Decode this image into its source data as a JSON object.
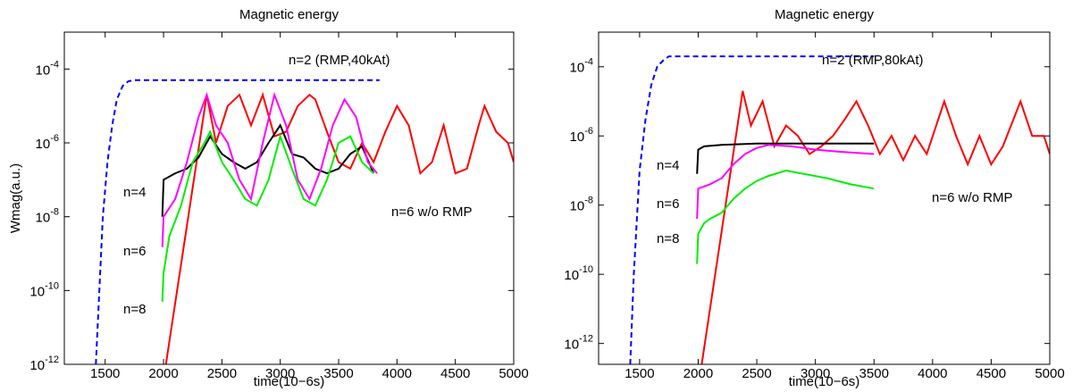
{
  "chart_data": [
    {
      "type": "line",
      "title": "Magnetic energy",
      "xlabel": "time(10−6s)",
      "ylabel": "Wmag(a.u.)",
      "log_y": true,
      "xlim": [
        1150,
        5000
      ],
      "ylim": [
        1e-12,
        0.001
      ],
      "xticks": [
        1500,
        2000,
        2500,
        3000,
        3500,
        4000,
        4500,
        5000
      ],
      "yticks": [
        {
          "value": 1e-12,
          "label": "10^-12"
        },
        {
          "value": 1e-10,
          "label": "10^-10"
        },
        {
          "value": 1e-08,
          "label": "10^-8"
        },
        {
          "value": 1e-06,
          "label": "10^-6"
        },
        {
          "value": 0.0001,
          "label": "10^-4"
        }
      ],
      "series": [
        {
          "name": "n=2 (RMP,40kAt)",
          "color": "#0000ff",
          "linestyle": "dashed",
          "x": [
            1420,
            1450,
            1480,
            1520,
            1560,
            1600,
            1650,
            1700,
            1750,
            3850
          ],
          "values": [
            1e-12,
            1e-10,
            1e-08,
            3e-07,
            3e-06,
            1.5e-05,
            3.5e-05,
            4.7e-05,
            5e-05,
            5e-05
          ]
        },
        {
          "name": "n=6 w/o RMP",
          "color": "#ff0000",
          "linestyle": "solid",
          "x": [
            2020,
            2370,
            2450,
            2550,
            2650,
            2750,
            2850,
            2950,
            3050,
            3150,
            3250,
            3300,
            3400,
            3500,
            3600,
            3700,
            3800,
            3900,
            4000,
            4100,
            4200,
            4300,
            4400,
            4500,
            4600,
            4700,
            4750,
            4850,
            4950,
            5000
          ],
          "values": [
            1e-12,
            2e-05,
            1e-06,
            1e-05,
            2e-05,
            3e-06,
            2e-05,
            1.5e-06,
            2e-06,
            1e-05,
            2e-05,
            1.5e-05,
            2e-06,
            3e-07,
            2e-07,
            1e-06,
            3e-07,
            2e-06,
            1e-05,
            3e-06,
            1.5e-07,
            3e-07,
            3e-06,
            1.5e-07,
            2e-07,
            3e-06,
            1e-05,
            2e-06,
            1e-06,
            3e-07
          ]
        },
        {
          "name": "n=4",
          "color": "#000000",
          "linestyle": "solid",
          "x": [
            1990,
            2000,
            2100,
            2200,
            2300,
            2400,
            2500,
            2600,
            2700,
            2800,
            2900,
            3000,
            3100,
            3200,
            3300,
            3400,
            3500,
            3600,
            3700,
            3800
          ],
          "values": [
            1e-08,
            1e-07,
            1.5e-07,
            2e-07,
            4e-07,
            1.5e-06,
            5e-07,
            3e-07,
            2e-07,
            3e-07,
            1e-06,
            3e-06,
            5e-07,
            4e-07,
            2e-07,
            1.5e-07,
            2e-07,
            5e-07,
            8e-07,
            1.5e-07
          ]
        },
        {
          "name": "n=6",
          "color": "#ff00ff",
          "linestyle": "solid",
          "x": [
            1990,
            2000,
            2100,
            2200,
            2300,
            2370,
            2450,
            2550,
            2650,
            2750,
            2850,
            2950,
            3050,
            3150,
            3250,
            3350,
            3450,
            3550,
            3650,
            3750,
            3830
          ],
          "values": [
            1.5e-09,
            1e-08,
            3e-08,
            3e-07,
            5e-06,
            2e-05,
            3e-06,
            1e-06,
            1e-07,
            3e-08,
            1e-06,
            2e-05,
            3e-06,
            1e-07,
            3e-08,
            2e-07,
            3e-06,
            1.5e-05,
            5e-06,
            3e-07,
            1.5e-07
          ]
        },
        {
          "name": "n=8",
          "color": "#00ee00",
          "linestyle": "solid",
          "x": [
            1990,
            2000,
            2050,
            2150,
            2250,
            2350,
            2400,
            2500,
            2600,
            2700,
            2800,
            2900,
            3000,
            3100,
            3200,
            3300,
            3400,
            3500,
            3600,
            3700,
            3800
          ],
          "values": [
            5e-11,
            3e-10,
            3e-09,
            2e-08,
            3e-07,
            1e-06,
            2e-06,
            3e-07,
            1e-07,
            3e-08,
            2e-08,
            1e-07,
            1.5e-06,
            2e-07,
            3e-08,
            2e-08,
            1e-07,
            1e-06,
            1.5e-06,
            3e-07,
            1.5e-07
          ]
        }
      ]
    },
    {
      "type": "line",
      "title": "Magnetic energy",
      "xlabel": "time(10−6s)",
      "log_y": true,
      "xlim": [
        1150,
        5000
      ],
      "ylim": [
        2.5e-13,
        0.001
      ],
      "xticks": [
        1500,
        2000,
        2500,
        3000,
        3500,
        4000,
        4500,
        5000
      ],
      "yticks": [
        {
          "value": 1e-12,
          "label": "10^-12"
        },
        {
          "value": 1e-10,
          "label": "10^-10"
        },
        {
          "value": 1e-08,
          "label": "10^-8"
        },
        {
          "value": 1e-06,
          "label": "10^-6"
        },
        {
          "value": 0.0001,
          "label": "10^-4"
        }
      ],
      "series": [
        {
          "name": "n=2 (RMP,80kAt)",
          "color": "#0000ff",
          "linestyle": "dashed",
          "x": [
            1420,
            1450,
            1500,
            1550,
            1600,
            1650,
            1700,
            1750,
            3500
          ],
          "values": [
            2.5e-13,
            1e-10,
            1e-07,
            3e-06,
            3e-05,
            0.0001,
            0.00015,
            0.0002,
            0.0002
          ]
        },
        {
          "name": "n=6 w/o RMP",
          "color": "#ff0000",
          "linestyle": "solid",
          "x": [
            2030,
            2380,
            2450,
            2550,
            2650,
            2750,
            2850,
            2950,
            3050,
            3150,
            3250,
            3350,
            3450,
            3550,
            3650,
            3750,
            3850,
            3950,
            4100,
            4200,
            4300,
            4400,
            4500,
            4600,
            4750,
            4850,
            4950,
            5000
          ],
          "values": [
            2.5e-13,
            2e-05,
            2e-06,
            1e-05,
            5e-07,
            2e-06,
            1e-06,
            3e-07,
            5e-07,
            1e-06,
            3e-06,
            1e-05,
            2e-06,
            3e-07,
            1e-06,
            2e-07,
            1e-06,
            3e-07,
            1e-05,
            1e-06,
            1.5e-07,
            1e-06,
            1.5e-07,
            5e-07,
            1e-05,
            1e-06,
            1e-06,
            3e-07
          ]
        },
        {
          "name": "n=4",
          "color": "#000000",
          "linestyle": "solid",
          "x": [
            1990,
            2000,
            2050,
            2200,
            2500,
            2800,
            3000,
            3500
          ],
          "values": [
            8e-08,
            4e-07,
            5e-07,
            5.5e-07,
            6e-07,
            6e-07,
            6e-07,
            6e-07
          ]
        },
        {
          "name": "n=6",
          "color": "#ff00ff",
          "linestyle": "solid",
          "x": [
            1990,
            2000,
            2100,
            2200,
            2300,
            2400,
            2500,
            2600,
            2800,
            3000,
            3200,
            3500
          ],
          "values": [
            4e-09,
            3e-08,
            4e-08,
            6e-08,
            1.5e-07,
            3e-07,
            4.5e-07,
            5.5e-07,
            5e-07,
            4e-07,
            3.5e-07,
            3e-07
          ]
        },
        {
          "name": "n=8",
          "color": "#00ee00",
          "linestyle": "solid",
          "x": [
            1990,
            2000,
            2050,
            2100,
            2200,
            2300,
            2400,
            2500,
            2600,
            2750,
            2900,
            3100,
            3300,
            3500
          ],
          "values": [
            2e-10,
            1.5e-09,
            3e-09,
            4e-09,
            6e-09,
            1.5e-08,
            3e-08,
            5e-08,
            7e-08,
            1e-07,
            8e-08,
            6e-08,
            4e-08,
            3e-08
          ]
        }
      ]
    }
  ]
}
